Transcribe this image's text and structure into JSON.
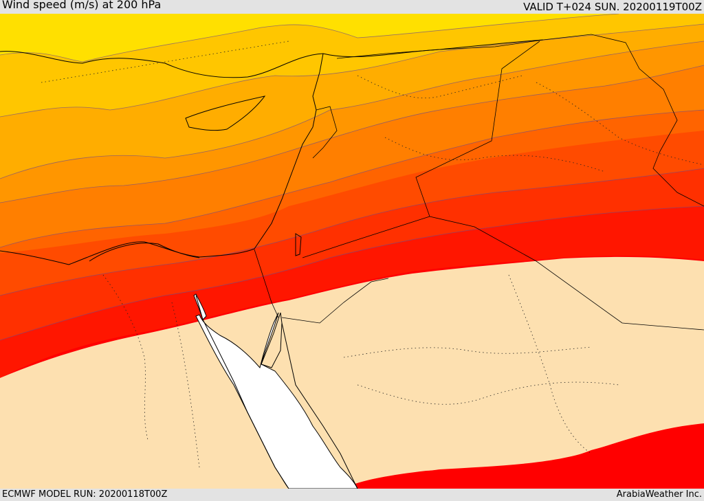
{
  "header": {
    "title": "Wind speed (m/s) at 200 hPa",
    "valid": "VALID T+024 SUN. 20200119T00Z"
  },
  "footer": {
    "model_run": "ECMWF MODEL RUN: 20200118T00Z",
    "credit": "ArabiaWeather Inc."
  },
  "map": {
    "variable": "wind speed",
    "level": "200 hPa",
    "units": "m/s",
    "palette": {
      "band_1": "#ffe000",
      "band_2": "#ffc600",
      "band_3": "#ffad00",
      "band_4": "#ff9600",
      "band_5": "#ff7f00",
      "band_6": "#ff6400",
      "band_7": "#ff4b00",
      "band_8": "#ff3000",
      "band_9": "#ff1600",
      "band_10": "#ff0000",
      "low_wind_land": "#fde0b0",
      "sea": "#ffffff"
    }
  }
}
